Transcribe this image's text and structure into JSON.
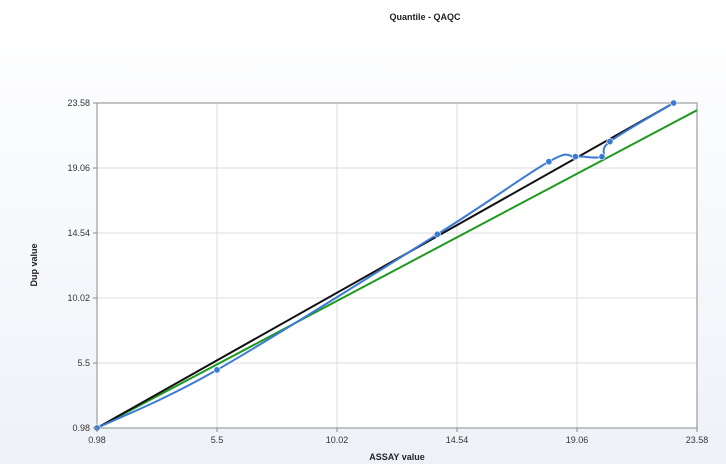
{
  "chart_data": {
    "type": "line",
    "title": "Quantile - QAQC",
    "xlabel": "ASSAY value",
    "ylabel": "Dup value",
    "xlim": [
      0.98,
      23.58
    ],
    "ylim": [
      0.98,
      23.58
    ],
    "xticks": [
      "0.98",
      "5.5",
      "10.02",
      "14.54",
      "19.06",
      "23.58"
    ],
    "yticks": [
      "0.98",
      "5.5",
      "10.02",
      "14.54",
      "19.06",
      "23.58"
    ],
    "grid": true,
    "series": [
      {
        "role": "quantile",
        "color": "#3a7bd5",
        "markers": true,
        "points": [
          [
            0.98,
            0.98
          ],
          [
            5.5,
            5.02
          ],
          [
            13.8,
            14.45
          ],
          [
            18.0,
            19.5
          ],
          [
            19.0,
            19.85
          ],
          [
            20.0,
            19.85
          ],
          [
            20.3,
            20.9
          ],
          [
            22.7,
            23.58
          ]
        ]
      },
      {
        "role": "reference",
        "color": "#111111",
        "markers": false,
        "points": [
          [
            0.98,
            0.98
          ],
          [
            22.7,
            23.58
          ]
        ]
      },
      {
        "role": "regression",
        "color": "#1e9a1e",
        "markers": false,
        "points": [
          [
            0.98,
            0.98
          ],
          [
            23.58,
            23.08
          ]
        ]
      }
    ]
  }
}
